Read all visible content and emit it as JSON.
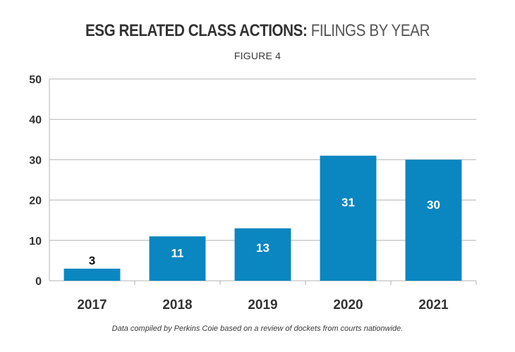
{
  "header": {
    "title_bold": "ESG RELATED CLASS ACTIONS:",
    "title_light": "FILINGS BY YEAR",
    "subtitle": "FIGURE 4"
  },
  "footer": {
    "note": "Data compiled by Perkins Coie based on a review of dockets from courts nationwide."
  },
  "colors": {
    "bar": "#0a86c0",
    "grid": "#b4b4b4",
    "axis_text": "#333333",
    "label_inside": "#ffffff",
    "label_outside": "#111111"
  },
  "chart_data": {
    "type": "bar",
    "title": "ESG RELATED CLASS ACTIONS: FILINGS BY YEAR",
    "subtitle": "FIGURE 4",
    "categories": [
      "2017",
      "2018",
      "2019",
      "2020",
      "2021"
    ],
    "values": [
      3,
      11,
      13,
      31,
      30
    ],
    "data_labels": [
      "3",
      "11",
      "13",
      "31",
      "30"
    ],
    "ylim": [
      0,
      50
    ],
    "yticks": [
      0,
      10,
      20,
      30,
      40,
      50
    ],
    "ytick_labels": [
      "0",
      "10",
      "20",
      "30",
      "40",
      "50"
    ],
    "xlabel": "",
    "ylabel": "",
    "grid": true,
    "legend": "none"
  }
}
